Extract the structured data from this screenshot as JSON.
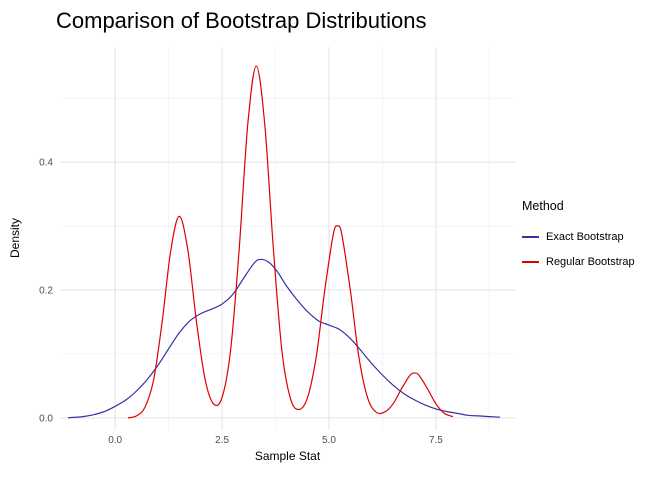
{
  "colors": {
    "background": "#FFFFFF",
    "grid_major": "#E3E3E3",
    "grid_minor": "#F1F1F1",
    "tick_label": "#4D4D4D",
    "text": "#000000"
  },
  "chart_data": {
    "type": "line",
    "title": "Comparison of Bootstrap Distributions",
    "xlabel": "Sample Stat",
    "ylabel": "Density",
    "legend_title": "Method",
    "legend_position": "right",
    "grid": true,
    "xlim": [
      -1.29,
      9.35
    ],
    "ylim": [
      -0.019,
      0.58
    ],
    "x_ticks": [
      0.0,
      2.5,
      5.0,
      7.5
    ],
    "x_tick_labels": [
      "0.0",
      "2.5",
      "5.0",
      "7.5"
    ],
    "y_ticks": [
      0.0,
      0.2,
      0.4
    ],
    "y_tick_labels": [
      "0.0",
      "0.2",
      "0.4"
    ],
    "x_minor": [
      1.25,
      3.75,
      6.25,
      8.75
    ],
    "y_minor": [
      0.1,
      0.3,
      0.5
    ],
    "series": [
      {
        "name": "Exact Bootstrap",
        "color": "#3333AA",
        "x": [
          -1.1,
          -0.75,
          -0.5,
          -0.25,
          0,
          0.25,
          0.5,
          0.75,
          1,
          1.25,
          1.5,
          1.75,
          2,
          2.25,
          2.5,
          2.75,
          3,
          3.25,
          3.4,
          3.6,
          3.8,
          4,
          4.25,
          4.5,
          4.75,
          5,
          5.25,
          5.5,
          5.75,
          6,
          6.25,
          6.5,
          6.75,
          7,
          7.25,
          7.5,
          7.75,
          8,
          8.25,
          8.5,
          8.75,
          9
        ],
        "y": [
          0,
          0.002,
          0.005,
          0.01,
          0.018,
          0.028,
          0.042,
          0.06,
          0.082,
          0.108,
          0.133,
          0.152,
          0.163,
          0.17,
          0.178,
          0.193,
          0.218,
          0.242,
          0.248,
          0.243,
          0.228,
          0.207,
          0.185,
          0.166,
          0.152,
          0.145,
          0.138,
          0.124,
          0.105,
          0.085,
          0.067,
          0.051,
          0.038,
          0.028,
          0.02,
          0.014,
          0.01,
          0.007,
          0.004,
          0.003,
          0.002,
          0.001
        ]
      },
      {
        "name": "Regular Bootstrap",
        "color": "#DD0000",
        "x": [
          0.3,
          0.5,
          0.7,
          0.9,
          1.1,
          1.3,
          1.5,
          1.7,
          1.9,
          2.1,
          2.3,
          2.5,
          2.7,
          2.9,
          3.1,
          3.3,
          3.5,
          3.7,
          3.9,
          4.1,
          4.3,
          4.5,
          4.7,
          4.9,
          5.1,
          5.2,
          5.3,
          5.5,
          5.7,
          5.9,
          6.1,
          6.3,
          6.5,
          6.7,
          6.9,
          7.0,
          7.1,
          7.3,
          7.5,
          7.7,
          7.9
        ],
        "y": [
          0,
          0.003,
          0.017,
          0.06,
          0.151,
          0.262,
          0.315,
          0.262,
          0.151,
          0.061,
          0.022,
          0.032,
          0.106,
          0.264,
          0.458,
          0.55,
          0.458,
          0.264,
          0.105,
          0.03,
          0.013,
          0.032,
          0.095,
          0.199,
          0.287,
          0.3,
          0.287,
          0.199,
          0.095,
          0.032,
          0.009,
          0.009,
          0.022,
          0.046,
          0.067,
          0.07,
          0.067,
          0.046,
          0.022,
          0.007,
          0.002
        ]
      }
    ]
  }
}
